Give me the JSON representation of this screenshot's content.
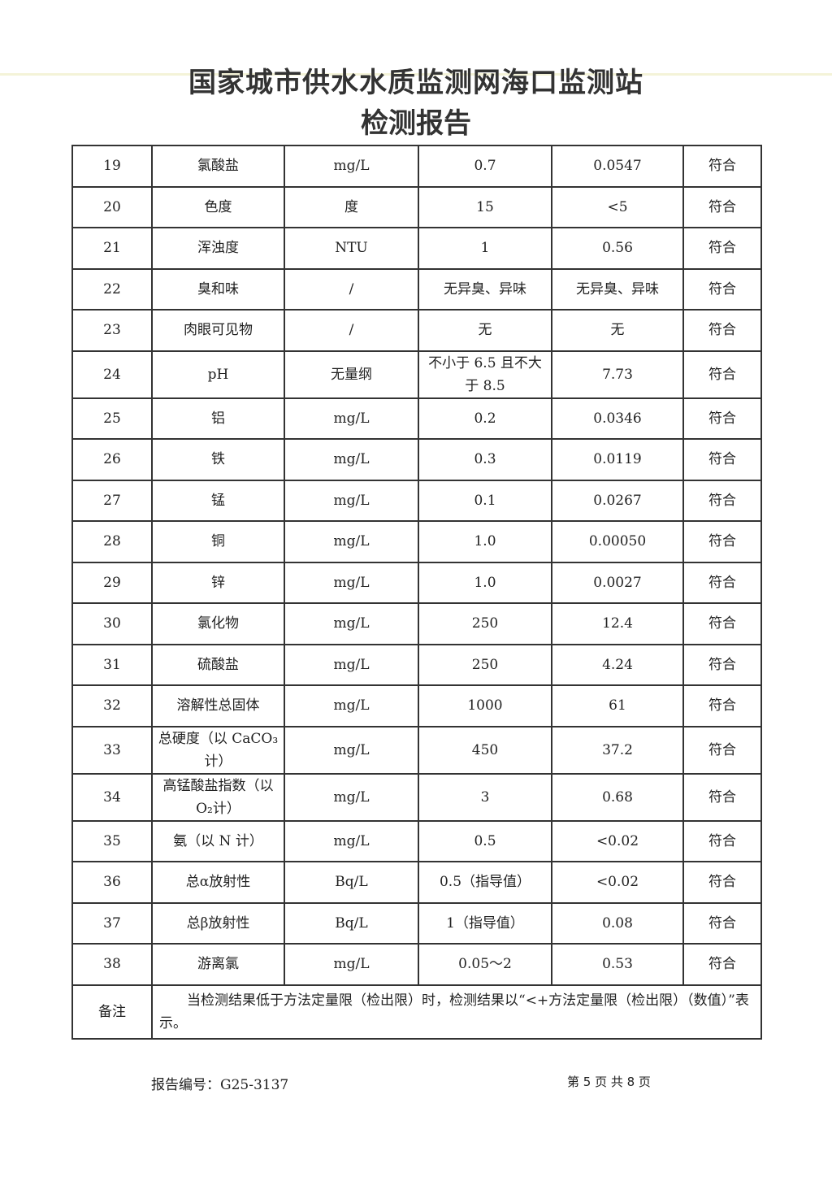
{
  "header": {
    "title_line1": "国家城市供水水质监测网海口监测站",
    "title_line2": "检测报告"
  },
  "rows": [
    {
      "no": "19",
      "item": "氯酸盐",
      "unit": "mg/L",
      "limit": "0.7",
      "result": "0.0547",
      "verdict": "符合"
    },
    {
      "no": "20",
      "item": "色度",
      "unit": "度",
      "limit": "15",
      "result": "<5",
      "verdict": "符合"
    },
    {
      "no": "21",
      "item": "浑浊度",
      "unit": "NTU",
      "limit": "1",
      "result": "0.56",
      "verdict": "符合"
    },
    {
      "no": "22",
      "item": "臭和味",
      "unit": "/",
      "limit": "无异臭、异味",
      "result": "无异臭、异味",
      "verdict": "符合"
    },
    {
      "no": "23",
      "item": "肉眼可见物",
      "unit": "/",
      "limit": "无",
      "result": "无",
      "verdict": "符合"
    },
    {
      "no": "24",
      "item": "pH",
      "unit": "无量纲",
      "limit": "不小于 6.5 且不大于 8.5",
      "result": "7.73",
      "verdict": "符合"
    },
    {
      "no": "25",
      "item": "铝",
      "unit": "mg/L",
      "limit": "0.2",
      "result": "0.0346",
      "verdict": "符合"
    },
    {
      "no": "26",
      "item": "铁",
      "unit": "mg/L",
      "limit": "0.3",
      "result": "0.0119",
      "verdict": "符合"
    },
    {
      "no": "27",
      "item": "锰",
      "unit": "mg/L",
      "limit": "0.1",
      "result": "0.0267",
      "verdict": "符合"
    },
    {
      "no": "28",
      "item": "铜",
      "unit": "mg/L",
      "limit": "1.0",
      "result": "0.00050",
      "verdict": "符合"
    },
    {
      "no": "29",
      "item": "锌",
      "unit": "mg/L",
      "limit": "1.0",
      "result": "0.0027",
      "verdict": "符合"
    },
    {
      "no": "30",
      "item": "氯化物",
      "unit": "mg/L",
      "limit": "250",
      "result": "12.4",
      "verdict": "符合"
    },
    {
      "no": "31",
      "item": "硫酸盐",
      "unit": "mg/L",
      "limit": "250",
      "result": "4.24",
      "verdict": "符合"
    },
    {
      "no": "32",
      "item": "溶解性总固体",
      "unit": "mg/L",
      "limit": "1000",
      "result": "61",
      "verdict": "符合"
    },
    {
      "no": "33",
      "item": "总硬度（以 CaCO₃计）",
      "unit": "mg/L",
      "limit": "450",
      "result": "37.2",
      "verdict": "符合"
    },
    {
      "no": "34",
      "item": "高锰酸盐指数（以 O₂计）",
      "unit": "mg/L",
      "limit": "3",
      "result": "0.68",
      "verdict": "符合"
    },
    {
      "no": "35",
      "item": "氨（以 N 计）",
      "unit": "mg/L",
      "limit": "0.5",
      "result": "<0.02",
      "verdict": "符合"
    },
    {
      "no": "36",
      "item": "总α放射性",
      "unit": "Bq/L",
      "limit": "0.5（指导值）",
      "result": "<0.02",
      "verdict": "符合"
    },
    {
      "no": "37",
      "item": "总β放射性",
      "unit": "Bq/L",
      "limit": "1（指导值）",
      "result": "0.08",
      "verdict": "符合"
    },
    {
      "no": "38",
      "item": "游离氯",
      "unit": "mg/L",
      "limit": "0.05～2",
      "result": "0.53",
      "verdict": "符合"
    }
  ],
  "note": {
    "label": "备注",
    "text": "当检测结果低于方法定量限（检出限）时，检测结果以“<+方法定量限（检出限）（数值）”表示。"
  },
  "footer": {
    "report_no": "报告编号：G25-3137",
    "page": "第 5 页  共 8 页"
  }
}
